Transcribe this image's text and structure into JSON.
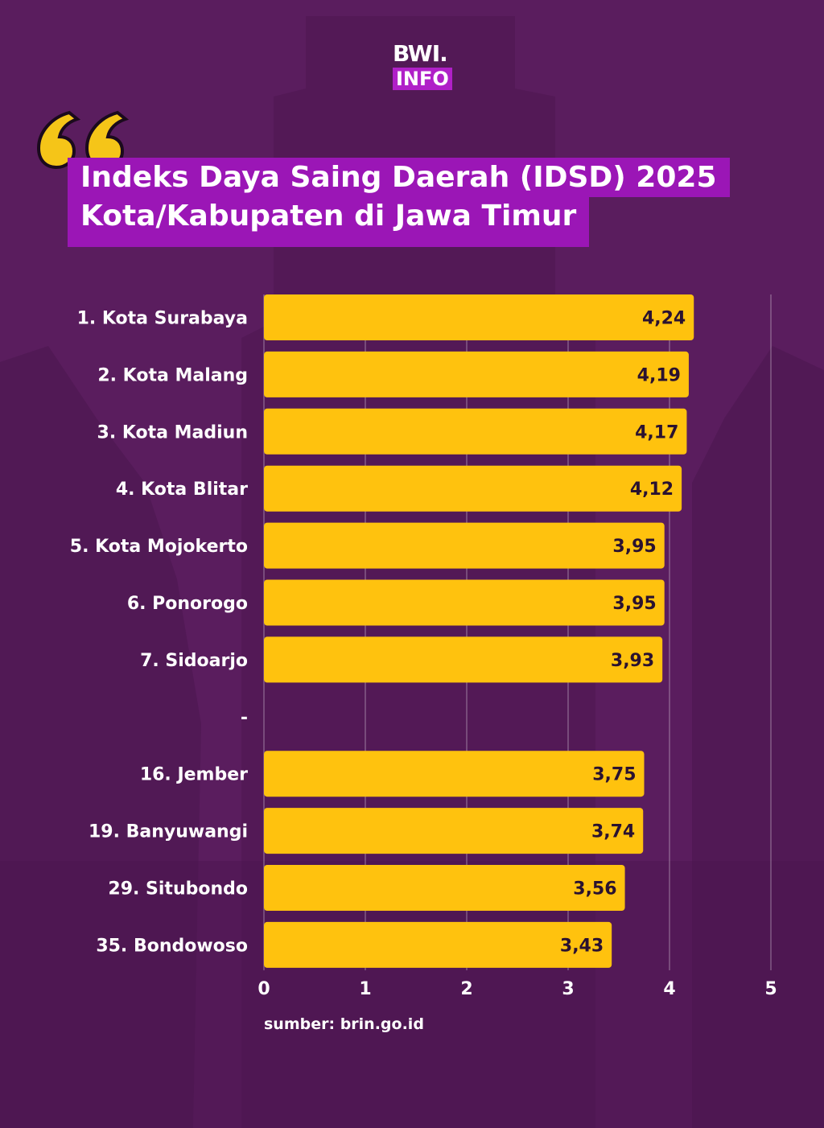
{
  "logo": {
    "line1": "BWI.",
    "line2": "INFO"
  },
  "title": {
    "line1": "Indeks Daya Saing Daerah (IDSD) 2025",
    "line2": "Kota/Kabupaten di Jawa Timur"
  },
  "chart_data": {
    "type": "bar",
    "orientation": "horizontal",
    "categories": [
      "1. Kota Surabaya",
      "2. Kota Malang",
      "3. Kota Madiun",
      "4. Kota Blitar",
      "5. Kota Mojokerto",
      "6. Ponorogo",
      "7. Sidoarjo",
      "-",
      "16. Jember",
      "19. Banyuwangi",
      "29. Situbondo",
      "35. Bondowoso"
    ],
    "values": [
      4.24,
      4.19,
      4.17,
      4.12,
      3.95,
      3.95,
      3.93,
      null,
      3.75,
      3.74,
      3.56,
      3.43
    ],
    "value_labels": [
      "4,24",
      "4,19",
      "4,17",
      "4,12",
      "3,95",
      "3,95",
      "3,93",
      "",
      "3,75",
      "3,74",
      "3,56",
      "3,43"
    ],
    "xlim": [
      0,
      5
    ],
    "xticks": [
      "0",
      "1",
      "2",
      "3",
      "4",
      "5"
    ],
    "grid": true,
    "bar_color": "#ffc20e",
    "title": "",
    "xlabel": "",
    "ylabel": ""
  },
  "source": "sumber: brin.go.id",
  "colors": {
    "background": "#5a1d5e",
    "title_highlight": "#9b16b6",
    "quote": "#f5c518",
    "bar": "#ffc20e"
  }
}
